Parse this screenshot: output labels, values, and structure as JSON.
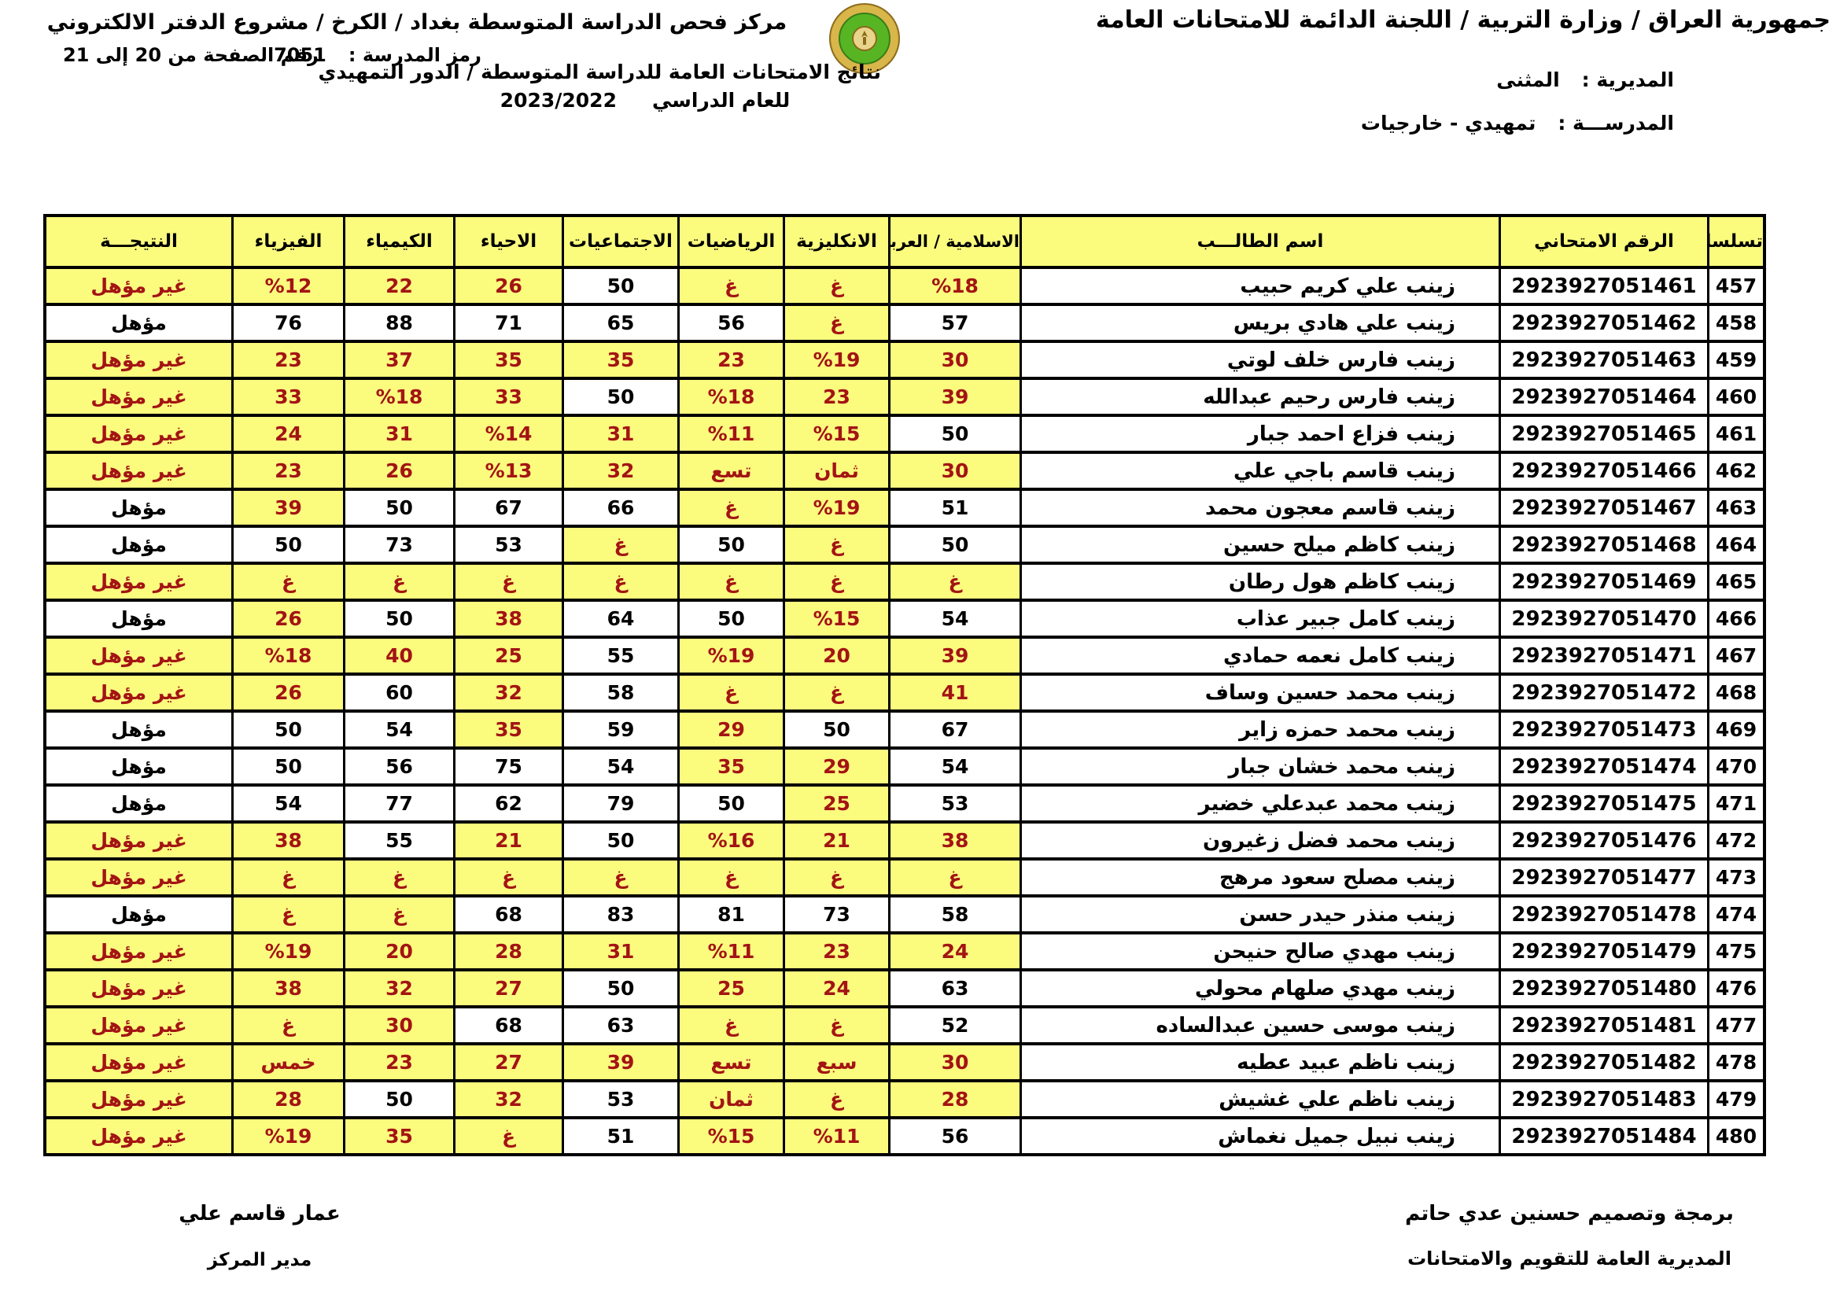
{
  "page": {
    "colors": {
      "fail_bg": "#FBFB7E",
      "fail_text": "#A31414",
      "border": "#000000",
      "logo_gold": "#D9B64A",
      "logo_green": "#57B524"
    },
    "header": {
      "title_right": "جمهورية العراق / وزارة التربية / اللجنة الدائمة للامتحانات العامة",
      "title_left": "مركز فحص الدراسة المتوسطة بغداد / الكرخ / مشروع الدفتر الالكتروني",
      "page_range": "رقم الصفحة من  20 إلى 21",
      "school_code_label": "رمز المدرسة :",
      "school_code": "7051",
      "exam_title": "نتائج الامتحانات العامة للدراسة المتوسطة / الدور التمهيدي",
      "year_label": "للعام الدراسي",
      "year": "2023/2022",
      "directorate_label": "المديرية :",
      "directorate": "المثنى",
      "school_label": "المدرســـة :",
      "school": "تمهيدي - خارجيات",
      "logo_name": "ministry-of-education-emblem"
    },
    "table": {
      "columns": {
        "serial": "تسلسل",
        "exam": "الرقم الامتحاني",
        "name": "اسم الطالـــب",
        "arabic": "الاسلامية / العربية",
        "english": "الانكليزية",
        "math": "الرياضيات",
        "social": "الاجتماعيات",
        "biology": "الاحياء",
        "chemistry": "الكيمياء",
        "physics": "الفيزياء",
        "result": "النتيجـــة"
      },
      "pass_result_value": "مؤهل",
      "fail_result_value": "غير مؤهل",
      "rows": [
        {
          "serial": "457",
          "exam": "2923927051461",
          "name": "زينب علي كريم حبيب",
          "arabic": "%18",
          "english": "غ",
          "math": "غ",
          "social": "50",
          "biology": "26",
          "chemistry": "22",
          "physics": "%12",
          "result": "غير مؤهل"
        },
        {
          "serial": "458",
          "exam": "2923927051462",
          "name": "زينب علي هادي بريس",
          "arabic": "57",
          "english": "غ",
          "math": "56",
          "social": "65",
          "biology": "71",
          "chemistry": "88",
          "physics": "76",
          "result": "مؤهل"
        },
        {
          "serial": "459",
          "exam": "2923927051463",
          "name": "زينب فارس خلف لوتي",
          "arabic": "30",
          "english": "%19",
          "math": "23",
          "social": "35",
          "biology": "35",
          "chemistry": "37",
          "physics": "23",
          "result": "غير مؤهل"
        },
        {
          "serial": "460",
          "exam": "2923927051464",
          "name": "زينب فارس رحيم عبدالله",
          "arabic": "39",
          "english": "23",
          "math": "%18",
          "social": "50",
          "biology": "33",
          "chemistry": "%18",
          "physics": "33",
          "result": "غير مؤهل"
        },
        {
          "serial": "461",
          "exam": "2923927051465",
          "name": "زينب فزاع احمد جبار",
          "arabic": "50",
          "english": "%15",
          "math": "%11",
          "social": "31",
          "biology": "%14",
          "chemistry": "31",
          "physics": "24",
          "result": "غير مؤهل"
        },
        {
          "serial": "462",
          "exam": "2923927051466",
          "name": "زينب قاسم باجي علي",
          "arabic": "30",
          "english": "ثمان",
          "math": "تسع",
          "social": "32",
          "biology": "%13",
          "chemistry": "26",
          "physics": "23",
          "result": "غير مؤهل"
        },
        {
          "serial": "463",
          "exam": "2923927051467",
          "name": "زينب قاسم معجون محمد",
          "arabic": "51",
          "english": "%19",
          "math": "غ",
          "social": "66",
          "biology": "67",
          "chemistry": "50",
          "physics": "39",
          "result": "مؤهل"
        },
        {
          "serial": "464",
          "exam": "2923927051468",
          "name": "زينب كاظم ميلح حسين",
          "arabic": "50",
          "english": "غ",
          "math": "50",
          "social": "غ",
          "biology": "53",
          "chemistry": "73",
          "physics": "50",
          "result": "مؤهل"
        },
        {
          "serial": "465",
          "exam": "2923927051469",
          "name": "زينب كاظم هول رطان",
          "arabic": "غ",
          "english": "غ",
          "math": "غ",
          "social": "غ",
          "biology": "غ",
          "chemistry": "غ",
          "physics": "غ",
          "result": "غير مؤهل"
        },
        {
          "serial": "466",
          "exam": "2923927051470",
          "name": "زينب كامل جبير عذاب",
          "arabic": "54",
          "english": "%15",
          "math": "50",
          "social": "64",
          "biology": "38",
          "chemistry": "50",
          "physics": "26",
          "result": "مؤهل"
        },
        {
          "serial": "467",
          "exam": "2923927051471",
          "name": "زينب كامل نعمه حمادي",
          "arabic": "39",
          "english": "20",
          "math": "%19",
          "social": "55",
          "biology": "25",
          "chemistry": "40",
          "physics": "%18",
          "result": "غير مؤهل"
        },
        {
          "serial": "468",
          "exam": "2923927051472",
          "name": "زينب محمد حسين وساف",
          "arabic": "41",
          "english": "غ",
          "math": "غ",
          "social": "58",
          "biology": "32",
          "chemistry": "60",
          "physics": "26",
          "result": "غير مؤهل"
        },
        {
          "serial": "469",
          "exam": "2923927051473",
          "name": "زينب محمد حمزه زاير",
          "arabic": "67",
          "english": "50",
          "math": "29",
          "social": "59",
          "biology": "35",
          "chemistry": "54",
          "physics": "50",
          "result": "مؤهل"
        },
        {
          "serial": "470",
          "exam": "2923927051474",
          "name": "زينب محمد خشان جبار",
          "arabic": "54",
          "english": "29",
          "math": "35",
          "social": "54",
          "biology": "75",
          "chemistry": "56",
          "physics": "50",
          "result": "مؤهل"
        },
        {
          "serial": "471",
          "exam": "2923927051475",
          "name": "زينب محمد عبدعلي خضير",
          "arabic": "53",
          "english": "25",
          "math": "50",
          "social": "79",
          "biology": "62",
          "chemistry": "77",
          "physics": "54",
          "result": "مؤهل"
        },
        {
          "serial": "472",
          "exam": "2923927051476",
          "name": "زينب محمد فضل زغيرون",
          "arabic": "38",
          "english": "21",
          "math": "%16",
          "social": "50",
          "biology": "21",
          "chemistry": "55",
          "physics": "38",
          "result": "غير مؤهل"
        },
        {
          "serial": "473",
          "exam": "2923927051477",
          "name": "زينب مصلح سعود مرهج",
          "arabic": "غ",
          "english": "غ",
          "math": "غ",
          "social": "غ",
          "biology": "غ",
          "chemistry": "غ",
          "physics": "غ",
          "result": "غير مؤهل"
        },
        {
          "serial": "474",
          "exam": "2923927051478",
          "name": "زينب منذر حيدر حسن",
          "arabic": "58",
          "english": "73",
          "math": "81",
          "social": "83",
          "biology": "68",
          "chemistry": "غ",
          "physics": "غ",
          "result": "مؤهل"
        },
        {
          "serial": "475",
          "exam": "2923927051479",
          "name": "زينب مهدي صالح حنيحن",
          "arabic": "24",
          "english": "23",
          "math": "%11",
          "social": "31",
          "biology": "28",
          "chemistry": "20",
          "physics": "%19",
          "result": "غير مؤهل"
        },
        {
          "serial": "476",
          "exam": "2923927051480",
          "name": "زينب مهدي صلهام محولي",
          "arabic": "63",
          "english": "24",
          "math": "25",
          "social": "50",
          "biology": "27",
          "chemistry": "32",
          "physics": "38",
          "result": "غير مؤهل"
        },
        {
          "serial": "477",
          "exam": "2923927051481",
          "name": "زينب موسى حسين عبدالساده",
          "arabic": "52",
          "english": "غ",
          "math": "غ",
          "social": "63",
          "biology": "68",
          "chemistry": "30",
          "physics": "غ",
          "result": "غير مؤهل"
        },
        {
          "serial": "478",
          "exam": "2923927051482",
          "name": "زينب ناظم عبيد عطيه",
          "arabic": "30",
          "english": "سبع",
          "math": "تسع",
          "social": "39",
          "biology": "27",
          "chemistry": "23",
          "physics": "خمس",
          "result": "غير مؤهل"
        },
        {
          "serial": "479",
          "exam": "2923927051483",
          "name": "زينب ناظم علي غشيش",
          "arabic": "28",
          "english": "غ",
          "math": "ثمان",
          "social": "53",
          "biology": "32",
          "chemistry": "50",
          "physics": "28",
          "result": "غير مؤهل"
        },
        {
          "serial": "480",
          "exam": "2923927051484",
          "name": "زينب نبيل جميل نغماش",
          "arabic": "56",
          "english": "%11",
          "math": "%15",
          "social": "51",
          "biology": "غ",
          "chemistry": "35",
          "physics": "%19",
          "result": "غير مؤهل"
        }
      ]
    },
    "footer": {
      "right_line1": "برمجة وتصميم حسنين عدي حاتم",
      "right_line2": "المديرية العامة للتقويم والامتحانات",
      "left_line1": "عمار قاسم علي",
      "left_line2": "مدير المركز"
    }
  }
}
